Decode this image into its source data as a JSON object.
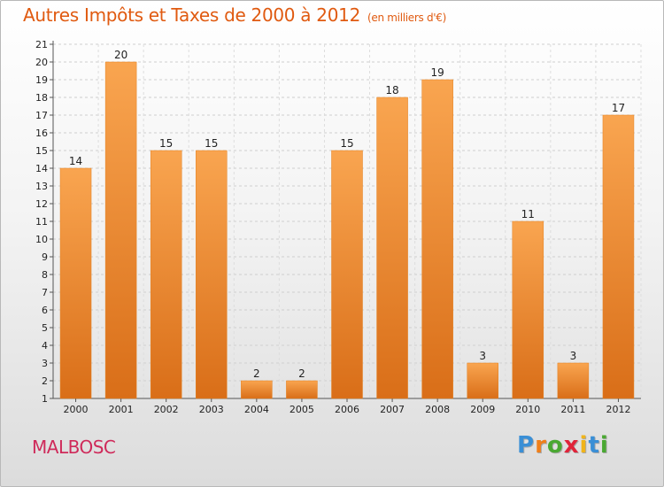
{
  "header": {
    "title": "Autres Impôts et Taxes de 2000 à 2012",
    "unit": "(en milliers d'€)"
  },
  "footer": {
    "commune": "MALBOSC",
    "logo": [
      "P",
      "r",
      "o",
      "x",
      "i",
      "t",
      "i"
    ],
    "logo_colors": [
      "#3a8fd6",
      "#f07f1a",
      "#4aa832",
      "#e0243a",
      "#f0b41a",
      "#3a8fd6",
      "#4aa832"
    ]
  },
  "chart_data": {
    "type": "bar",
    "title": "Autres Impôts et Taxes de 2000 à 2012",
    "categories": [
      "2000",
      "2001",
      "2002",
      "2003",
      "2004",
      "2005",
      "2006",
      "2007",
      "2008",
      "2009",
      "2010",
      "2011",
      "2012"
    ],
    "values": [
      14,
      20,
      15,
      15,
      2,
      2,
      15,
      18,
      19,
      3,
      11,
      3,
      17
    ],
    "ylim": [
      1,
      21
    ],
    "yticks": [
      1,
      2,
      3,
      4,
      5,
      6,
      7,
      8,
      9,
      10,
      11,
      12,
      13,
      14,
      15,
      16,
      17,
      18,
      19,
      20,
      21
    ],
    "grid": true,
    "bar_color": "#f28a25"
  }
}
